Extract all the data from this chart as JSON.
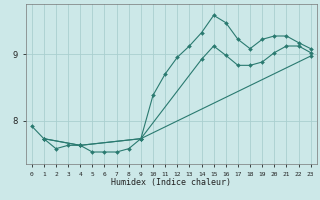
{
  "xlabel": "Humidex (Indice chaleur)",
  "bg_color": "#cce8e8",
  "grid_color": "#aacfcf",
  "line_color": "#2a7a70",
  "xlim": [
    -0.5,
    23.5
  ],
  "ylim": [
    7.35,
    9.75
  ],
  "yticks": [
    8,
    9
  ],
  "xticks": [
    0,
    1,
    2,
    3,
    4,
    5,
    6,
    7,
    8,
    9,
    10,
    11,
    12,
    13,
    14,
    15,
    16,
    17,
    18,
    19,
    20,
    21,
    22,
    23
  ],
  "series1_x": [
    0,
    1,
    2,
    3,
    4,
    5,
    6,
    7,
    8,
    9,
    10,
    11,
    12,
    13,
    14,
    15,
    16,
    17,
    18,
    19,
    20,
    21,
    22,
    23
  ],
  "series1_y": [
    7.92,
    7.73,
    7.58,
    7.63,
    7.63,
    7.53,
    7.53,
    7.53,
    7.58,
    7.73,
    8.38,
    8.7,
    8.95,
    9.12,
    9.32,
    9.58,
    9.47,
    9.22,
    9.08,
    9.22,
    9.27,
    9.27,
    9.17,
    9.08
  ],
  "series2_x": [
    1,
    4,
    9,
    14,
    15,
    16,
    17,
    18,
    19,
    20,
    21,
    22,
    23
  ],
  "series2_y": [
    7.73,
    7.63,
    7.73,
    8.92,
    9.12,
    8.98,
    8.83,
    8.83,
    8.88,
    9.02,
    9.12,
    9.12,
    9.02
  ],
  "series3_x": [
    1,
    4,
    9,
    23
  ],
  "series3_y": [
    7.73,
    7.63,
    7.73,
    8.97
  ]
}
